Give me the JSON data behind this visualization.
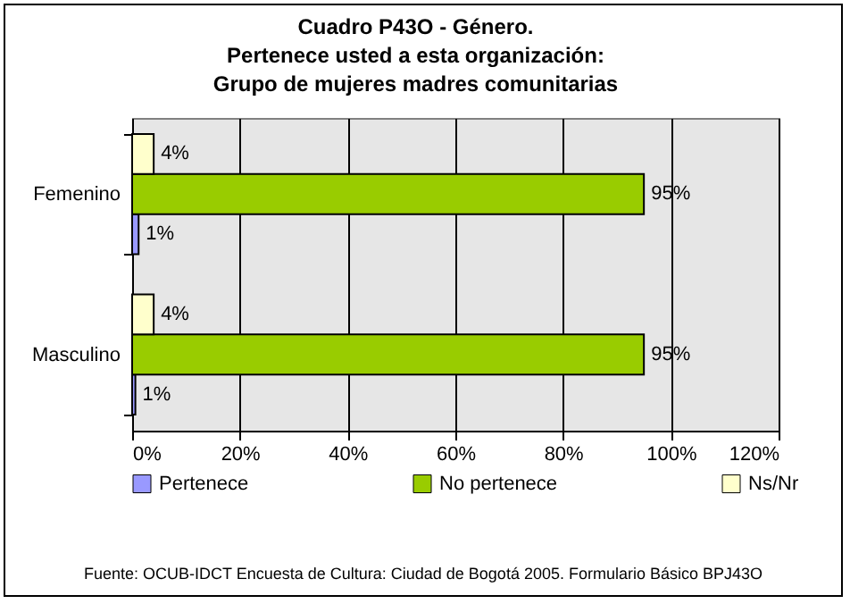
{
  "chart_data": {
    "type": "bar",
    "orientation": "horizontal",
    "title": [
      "Cuadro P43O - Género.",
      "Pertenece usted a esta organización:",
      "Grupo de mujeres madres comunitarias"
    ],
    "categories": [
      "Femenino",
      "Masculino"
    ],
    "series": [
      {
        "name": "Pertenece",
        "color": "#9999ff",
        "values": [
          1.2,
          0.6
        ],
        "value_labels": [
          "1%",
          "1%"
        ]
      },
      {
        "name": "No pertenece",
        "color": "#99cc00",
        "values": [
          95,
          95
        ],
        "value_labels": [
          "95%",
          "95%"
        ]
      },
      {
        "name": "Ns/Nr",
        "color": "#ffffcc",
        "values": [
          4,
          4
        ],
        "value_labels": [
          "4%",
          "4%"
        ]
      }
    ],
    "xlim": [
      0,
      120
    ],
    "xticks": [
      {
        "value": 0,
        "label": "0%"
      },
      {
        "value": 20,
        "label": "20%"
      },
      {
        "value": 40,
        "label": "40%"
      },
      {
        "value": 60,
        "label": "60%"
      },
      {
        "value": 80,
        "label": "80%"
      },
      {
        "value": 100,
        "label": "100%"
      },
      {
        "value": 120,
        "label": "120%"
      }
    ],
    "grid": "x",
    "legend": "bottom",
    "annotations": [
      "Fuente: OCUB-IDCT Encuesta de Cultura: Ciudad de Bogotá 2005. Formulario Básico BPJ43O"
    ]
  }
}
